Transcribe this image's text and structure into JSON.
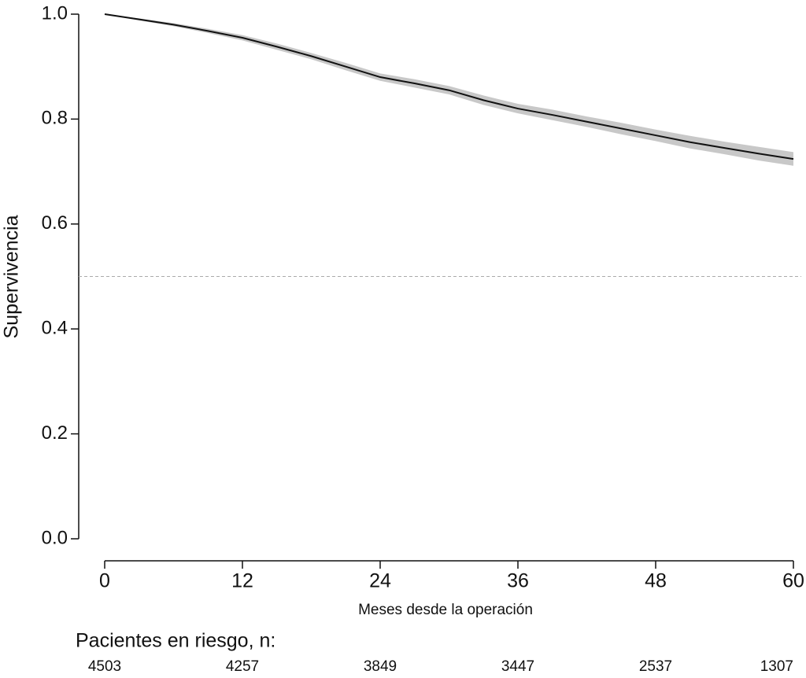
{
  "chart_data": {
    "type": "line",
    "x_label": "Meses desde la operación",
    "y_label": "Supervivencia",
    "x": [
      0,
      3,
      6,
      9,
      12,
      15,
      18,
      21,
      24,
      27,
      30,
      33,
      36,
      39,
      42,
      45,
      48,
      51,
      54,
      57,
      60
    ],
    "values": [
      1.0,
      0.99,
      0.98,
      0.968,
      0.955,
      0.938,
      0.92,
      0.9,
      0.88,
      0.868,
      0.855,
      0.836,
      0.82,
      0.808,
      0.795,
      0.782,
      0.769,
      0.756,
      0.745,
      0.734,
      0.724
    ],
    "ci_upper": [
      1.0,
      0.992,
      0.983,
      0.972,
      0.96,
      0.944,
      0.926,
      0.907,
      0.887,
      0.876,
      0.863,
      0.845,
      0.829,
      0.818,
      0.805,
      0.793,
      0.78,
      0.768,
      0.757,
      0.747,
      0.737
    ],
    "ci_lower": [
      1.0,
      0.988,
      0.977,
      0.964,
      0.95,
      0.932,
      0.914,
      0.893,
      0.873,
      0.86,
      0.847,
      0.827,
      0.811,
      0.798,
      0.785,
      0.771,
      0.758,
      0.744,
      0.733,
      0.721,
      0.711
    ],
    "color": "#111111",
    "ci_color": "#c8c8c8",
    "reference_line": 0.5,
    "xlim": [
      0,
      60
    ],
    "xticks": [
      0,
      12,
      24,
      36,
      48,
      60
    ],
    "ylim": [
      0,
      1
    ],
    "yticks": [
      {
        "value": 0,
        "label": "0.0"
      },
      0.2,
      0.4,
      0.6,
      0.8,
      {
        "value": 1,
        "label": "1.0"
      }
    ],
    "at_risk": {
      "label": "Pacientes en riesgo, n:",
      "x": [
        0,
        12,
        24,
        36,
        48,
        60
      ],
      "values": [
        4503,
        4257,
        3849,
        3447,
        2537,
        1307
      ]
    }
  }
}
